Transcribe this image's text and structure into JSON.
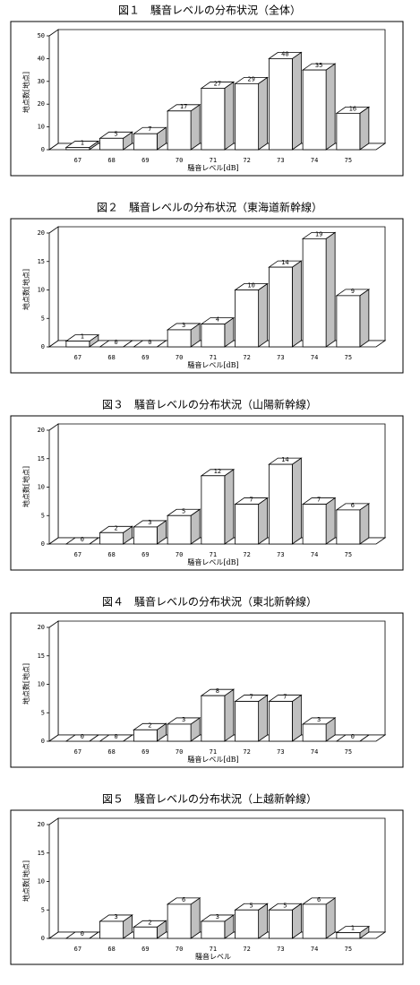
{
  "chart_data": [
    {
      "type": "bar",
      "title": "図１　騒音レベルの分布状況（全体）",
      "categories": [
        "67",
        "68",
        "69",
        "70",
        "71",
        "72",
        "73",
        "74",
        "75"
      ],
      "values": [
        1,
        5,
        7,
        17,
        27,
        29,
        40,
        35,
        16
      ],
      "ylim": [
        0,
        50
      ],
      "yticks": [
        0,
        10,
        20,
        30,
        40,
        50
      ],
      "xlabel": "騒音レベル[dB]",
      "ylabel": "地点数[地点]",
      "color": "#ffffff"
    },
    {
      "type": "bar",
      "title": "図２　騒音レベルの分布状況（東海道新幹線）",
      "categories": [
        "67",
        "68",
        "69",
        "70",
        "71",
        "72",
        "73",
        "74",
        "75"
      ],
      "values": [
        1,
        0,
        0,
        3,
        4,
        10,
        14,
        19,
        9
      ],
      "ylim": [
        0,
        20
      ],
      "yticks": [
        0,
        5,
        10,
        15,
        20
      ],
      "xlabel": "騒音レベル[dB]",
      "ylabel": "地点数[地点]",
      "color": "#ffffff"
    },
    {
      "type": "bar",
      "title": "図３　騒音レベルの分布状況（山陽新幹線）",
      "categories": [
        "67",
        "68",
        "69",
        "70",
        "71",
        "72",
        "73",
        "74",
        "75"
      ],
      "values": [
        0,
        2,
        3,
        5,
        12,
        7,
        14,
        7,
        6
      ],
      "ylim": [
        0,
        20
      ],
      "yticks": [
        0,
        5,
        10,
        15,
        20
      ],
      "xlabel": "騒音レベル[dB]",
      "ylabel": "地点数[地点]",
      "color": "#ffffff"
    },
    {
      "type": "bar",
      "title": "図４　騒音レベルの分布状況（東北新幹線）",
      "categories": [
        "67",
        "68",
        "69",
        "70",
        "71",
        "72",
        "73",
        "74",
        "75"
      ],
      "values": [
        0,
        0,
        2,
        3,
        8,
        7,
        7,
        3,
        0
      ],
      "ylim": [
        0,
        20
      ],
      "yticks": [
        0,
        5,
        10,
        15,
        20
      ],
      "xlabel": "騒音レベル[dB]",
      "ylabel": "地点数[地点]",
      "color": "#ffffff"
    },
    {
      "type": "bar",
      "title": "図５　騒音レベルの分布状況（上越新幹線）",
      "categories": [
        "67",
        "68",
        "69",
        "70",
        "71",
        "72",
        "73",
        "74",
        "75"
      ],
      "values": [
        0,
        3,
        2,
        6,
        3,
        5,
        5,
        6,
        1
      ],
      "ylim": [
        0,
        20
      ],
      "yticks": [
        0,
        5,
        10,
        15,
        20
      ],
      "xlabel": "騒音レベル",
      "ylabel": "地点数[地点]",
      "color": "#ffffff"
    }
  ]
}
